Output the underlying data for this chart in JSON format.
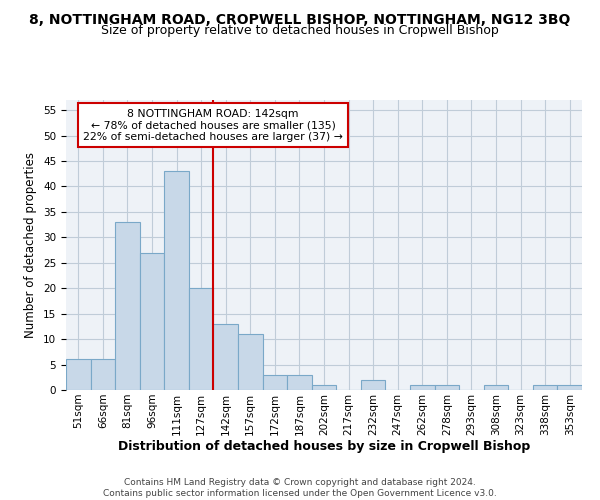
{
  "title": "8, NOTTINGHAM ROAD, CROPWELL BISHOP, NOTTINGHAM, NG12 3BQ",
  "subtitle": "Size of property relative to detached houses in Cropwell Bishop",
  "xlabel": "Distribution of detached houses by size in Cropwell Bishop",
  "ylabel": "Number of detached properties",
  "footer_line1": "Contains HM Land Registry data © Crown copyright and database right 2024.",
  "footer_line2": "Contains public sector information licensed under the Open Government Licence v3.0.",
  "bin_labels": [
    "51sqm",
    "66sqm",
    "81sqm",
    "96sqm",
    "111sqm",
    "127sqm",
    "142sqm",
    "157sqm",
    "172sqm",
    "187sqm",
    "202sqm",
    "217sqm",
    "232sqm",
    "247sqm",
    "262sqm",
    "278sqm",
    "293sqm",
    "308sqm",
    "323sqm",
    "338sqm",
    "353sqm"
  ],
  "bar_heights": [
    6,
    6,
    33,
    27,
    43,
    20,
    13,
    11,
    3,
    3,
    1,
    0,
    2,
    0,
    1,
    1,
    0,
    1,
    0,
    1,
    1
  ],
  "bar_color": "#c8d8e8",
  "bar_edge_color": "#7aa8c8",
  "grid_color": "#c0ccd8",
  "vline_color": "#cc0000",
  "annotation_text": "8 NOTTINGHAM ROAD: 142sqm\n← 78% of detached houses are smaller (135)\n22% of semi-detached houses are larger (37) →",
  "annotation_box_color": "#ffffff",
  "annotation_box_edge": "#cc0000",
  "ylim": [
    0,
    57
  ],
  "yticks": [
    0,
    5,
    10,
    15,
    20,
    25,
    30,
    35,
    40,
    45,
    50,
    55
  ],
  "title_fontsize": 10,
  "subtitle_fontsize": 9,
  "axis_label_fontsize": 8.5,
  "tick_fontsize": 7.5,
  "footer_fontsize": 6.5
}
